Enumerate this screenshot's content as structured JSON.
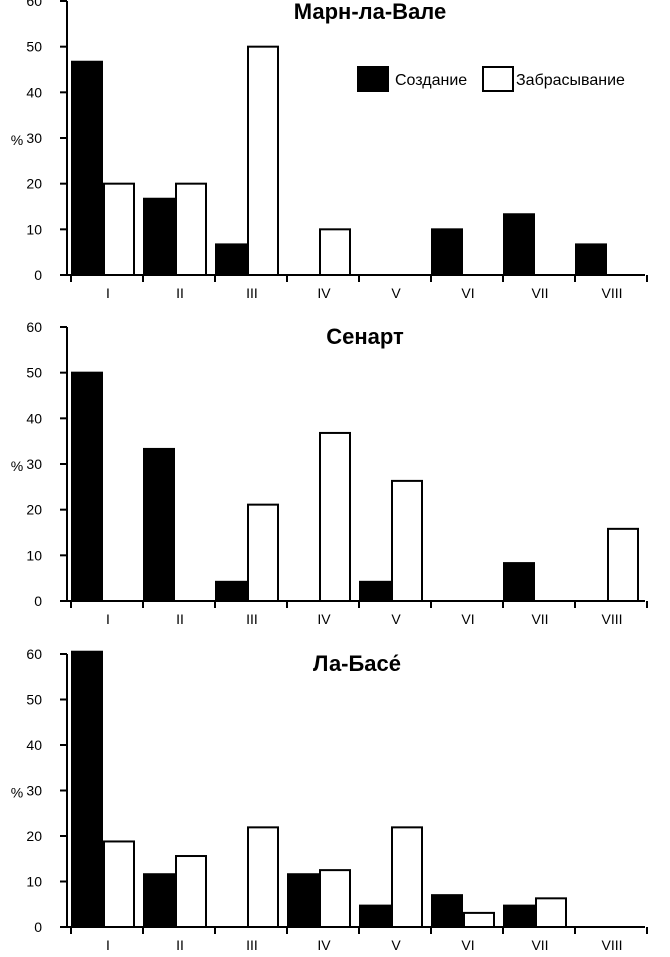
{
  "chart_data": [
    {
      "type": "bar",
      "title": "Марн-ла-Вале",
      "ylabel": "%",
      "ylim": [
        0,
        60
      ],
      "yticks": [
        0,
        10,
        20,
        30,
        40,
        50,
        60
      ],
      "categories": [
        "I",
        "II",
        "III",
        "IV",
        "V",
        "VI",
        "VII",
        "VIII"
      ],
      "legend": {
        "position": "top-right",
        "entries": [
          "Создание",
          "Забрасывание"
        ]
      },
      "grid": false,
      "series": [
        {
          "name": "Создание",
          "color": "#000000",
          "values": [
            46.7,
            16.7,
            6.7,
            0,
            0,
            10,
            13.3,
            6.7
          ]
        },
        {
          "name": "Забрасывание",
          "color": "#ffffff",
          "values": [
            20,
            20,
            50,
            10,
            0,
            0,
            0,
            0
          ]
        }
      ]
    },
    {
      "type": "bar",
      "title": "Сенарт",
      "ylabel": "%",
      "ylim": [
        0,
        60
      ],
      "yticks": [
        0,
        10,
        20,
        30,
        40,
        50,
        60
      ],
      "categories": [
        "I",
        "II",
        "III",
        "IV",
        "V",
        "VI",
        "VII",
        "VIII"
      ],
      "grid": false,
      "series": [
        {
          "name": "Создание",
          "color": "#000000",
          "values": [
            50,
            33.3,
            4.2,
            0,
            4.2,
            0,
            8.3,
            0
          ]
        },
        {
          "name": "Забрасывание",
          "color": "#ffffff",
          "values": [
            0,
            0,
            21.1,
            36.8,
            26.3,
            0,
            0,
            15.8
          ]
        }
      ]
    },
    {
      "type": "bar",
      "title": "Ла-Басе́",
      "ylabel": "%",
      "ylim": [
        0,
        60
      ],
      "yticks": [
        0,
        10,
        20,
        30,
        40,
        50,
        60
      ],
      "categories": [
        "I",
        "II",
        "III",
        "IV",
        "V",
        "VI",
        "VII",
        "VIII"
      ],
      "grid": false,
      "series": [
        {
          "name": "Создание",
          "color": "#000000",
          "values": [
            60.5,
            11.6,
            0,
            11.6,
            4.7,
            7,
            4.7,
            0
          ]
        },
        {
          "name": "Забрасывание",
          "color": "#ffffff",
          "values": [
            18.8,
            15.6,
            21.9,
            12.5,
            21.9,
            3.1,
            6.3,
            0
          ]
        }
      ]
    }
  ]
}
